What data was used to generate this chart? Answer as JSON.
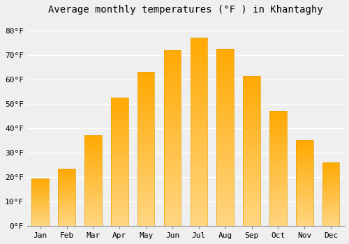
{
  "title": "Average monthly temperatures (°F ) in Khantaghy",
  "months": [
    "Jan",
    "Feb",
    "Mar",
    "Apr",
    "May",
    "Jun",
    "Jul",
    "Aug",
    "Sep",
    "Oct",
    "Nov",
    "Dec"
  ],
  "values": [
    19.5,
    23.5,
    37,
    52.5,
    63,
    72,
    77,
    72.5,
    61.5,
    47,
    35,
    26
  ],
  "bar_color_main": "#FFA500",
  "bar_color_light": "#FFD070",
  "bar_edge_color": "#E8A000",
  "ylim": [
    0,
    85
  ],
  "yticks": [
    0,
    10,
    20,
    30,
    40,
    50,
    60,
    70,
    80
  ],
  "ytick_labels": [
    "0°F",
    "10°F",
    "20°F",
    "30°F",
    "40°F",
    "50°F",
    "60°F",
    "70°F",
    "80°F"
  ],
  "background_color": "#EFEFEF",
  "plot_bg_color": "#EFEFEF",
  "grid_color": "#FFFFFF",
  "title_fontsize": 10,
  "tick_fontsize": 8,
  "font_family": "monospace"
}
